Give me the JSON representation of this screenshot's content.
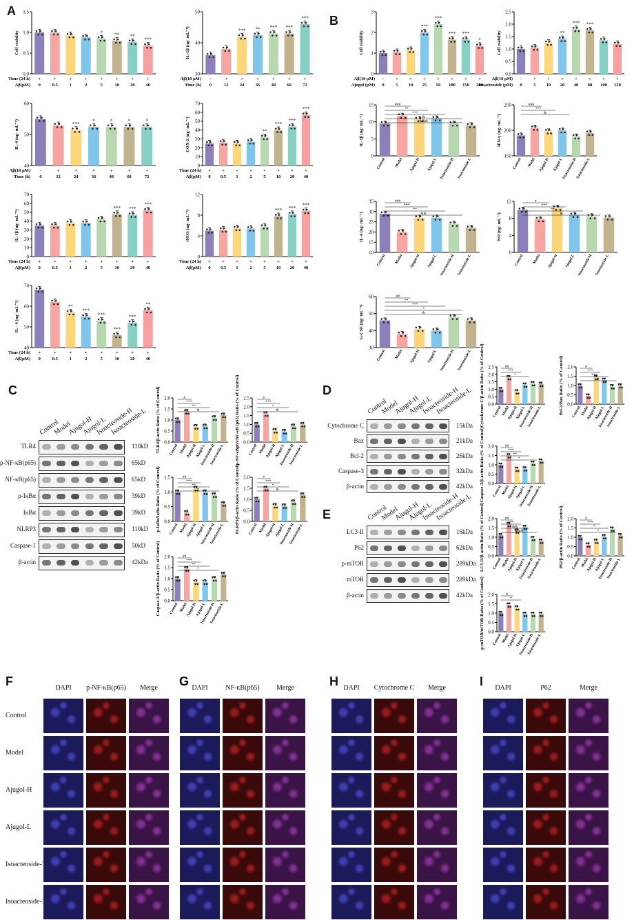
{
  "panels": {
    "A": "A",
    "B": "B",
    "C": "C",
    "D": "D",
    "E": "E",
    "F": "F",
    "G": "G",
    "H": "H",
    "I": "I"
  },
  "colors": [
    "#8c7fba",
    "#f6a5a0",
    "#fdd67a",
    "#7fc6ea",
    "#b8d9b0",
    "#c2b38f",
    "#86d1c4",
    "#f7a0a0",
    "#8f9ad0",
    "#b38fb6"
  ],
  "chart_data": [
    {
      "id": "a1",
      "type": "bar",
      "ylabel": "Cell viability",
      "ylim": [
        0,
        1.5
      ],
      "yticks": [
        "0.0",
        "0.5",
        "1.0",
        "1.5"
      ],
      "rowlabels": [
        "Time (24 h)",
        "Aβ(μM)"
      ],
      "rows": [
        [
          "+",
          "+",
          "+",
          "+",
          "+",
          "+",
          "+",
          "+"
        ],
        [
          "0",
          "0.5",
          "1",
          "2",
          "5",
          "10",
          "20",
          "40"
        ]
      ],
      "values": [
        1.0,
        1.0,
        0.93,
        0.88,
        0.85,
        0.8,
        0.77,
        0.68
      ],
      "sig": [
        "",
        "",
        "",
        "",
        "*",
        "**",
        "**",
        "***"
      ]
    },
    {
      "id": "a2",
      "type": "bar",
      "ylabel": "IL-1β (ng· mL⁻¹)",
      "ylim": [
        30,
        50
      ],
      "yticks": [
        "30",
        "40",
        "50"
      ],
      "rowlabels": [
        "Aβ(10 μM)",
        "Time (h)"
      ],
      "rows": [
        [
          "-",
          "+",
          "+",
          "+",
          "+",
          "+",
          "+"
        ],
        [
          "0",
          "12",
          "24",
          "36",
          "48",
          "60",
          "72"
        ]
      ],
      "values": [
        36,
        38,
        42,
        42.5,
        43,
        43,
        46
      ],
      "sig": [
        "",
        "",
        "***",
        "**",
        "***",
        "***",
        "***"
      ]
    },
    {
      "id": "a3",
      "type": "bar",
      "ylabel": "IL-4 (ng· mL⁻¹)",
      "ylim": [
        40,
        60
      ],
      "yticks": [
        "40",
        "50",
        "60"
      ],
      "rowlabels": [
        "Aβ(10 μM)",
        "Time (h)"
      ],
      "rows": [
        [
          "-",
          "+",
          "+",
          "+",
          "+",
          "+",
          "+"
        ],
        [
          "0",
          "12",
          "24",
          "36",
          "48",
          "60",
          "72"
        ]
      ],
      "values": [
        55,
        53,
        51.5,
        52.5,
        52.5,
        52.5,
        52.5
      ],
      "sig": [
        "",
        "",
        "***",
        "*",
        "*",
        "*",
        "*"
      ]
    },
    {
      "id": "a4",
      "type": "bar",
      "ylabel": "COX-2 (ng· mL⁻¹)",
      "ylim": [
        0,
        70
      ],
      "yticks": [
        "0",
        "10",
        "20",
        "30",
        "40",
        "50",
        "60",
        "70"
      ],
      "rowlabels": [
        "Time (24 h)",
        "Aβ(μM)"
      ],
      "rows": [
        [
          "+",
          "+",
          "+",
          "+",
          "+",
          "+",
          "+",
          "+"
        ],
        [
          "0",
          "0.5",
          "1",
          "2",
          "5",
          "10",
          "20",
          "40"
        ]
      ],
      "values": [
        25,
        26,
        25,
        27,
        32,
        40,
        44,
        57
      ],
      "sig": [
        "",
        "",
        "",
        "",
        "**",
        "***",
        "***",
        "***"
      ]
    },
    {
      "id": "a5",
      "type": "bar",
      "ylabel": "IL-1β (ng· mL⁻¹)",
      "ylim": [
        0,
        70
      ],
      "yticks": [
        "0",
        "10",
        "20",
        "30",
        "40",
        "50",
        "60",
        "70"
      ],
      "rowlabels": [
        "Time (24 h)",
        "Aβ(μM)"
      ],
      "rows": [
        [
          "+",
          "+",
          "+",
          "+",
          "+",
          "+",
          "+",
          "+"
        ],
        [
          "0",
          "0.5",
          "1",
          "2",
          "5",
          "10",
          "20",
          "40"
        ]
      ],
      "values": [
        35,
        35,
        38,
        38,
        42,
        48,
        47,
        52
      ],
      "sig": [
        "",
        "",
        "",
        "",
        "",
        "***",
        "***",
        "***"
      ]
    },
    {
      "id": "a6",
      "type": "bar",
      "ylabel": "iNOS (ng· mL⁻¹)",
      "ylim": [
        0,
        12
      ],
      "yticks": [
        "0",
        "4",
        "8",
        "12"
      ],
      "rowlabels": [
        "Time (24 h)",
        "Aβ(μM)"
      ],
      "rows": [
        [
          "+",
          "+",
          "+",
          "+",
          "+",
          "+",
          "+",
          "+"
        ],
        [
          "0",
          "0.5",
          "1",
          "2",
          "5",
          "10",
          "20",
          "40"
        ]
      ],
      "values": [
        5,
        5.2,
        5.5,
        5.4,
        5.8,
        7.8,
        8.2,
        8.8
      ],
      "sig": [
        "",
        "",
        "",
        "",
        "",
        "***",
        "***",
        "***"
      ]
    },
    {
      "id": "a7",
      "type": "bar",
      "ylabel": "IL - 4 (ng· mL⁻¹)",
      "ylim": [
        40,
        70
      ],
      "yticks": [
        "40",
        "50",
        "60",
        "70"
      ],
      "rowlabels": [
        "Time (24 h)",
        "Aβ(μM)"
      ],
      "rows": [
        [
          "+",
          "+",
          "+",
          "+",
          "+",
          "+",
          "+",
          "+"
        ],
        [
          "0",
          "0.5",
          "1",
          "2",
          "5",
          "10",
          "20",
          "40"
        ]
      ],
      "values": [
        68,
        62,
        57,
        55,
        53,
        46,
        52,
        58
      ],
      "sig": [
        "",
        "",
        "**",
        "***",
        "***",
        "***",
        "***",
        "**"
      ]
    },
    {
      "id": "b1",
      "type": "bar",
      "ylabel": "Cell viability",
      "ylim": [
        0,
        3
      ],
      "yticks": [
        "0",
        "1",
        "2",
        "3"
      ],
      "rowlabels": [
        "Aβ(10 μM)",
        "Ajugol (μM)"
      ],
      "rows": [
        [
          "-",
          "+",
          "+",
          "+",
          "+",
          "+",
          "+",
          "+"
        ],
        [
          "0",
          "5",
          "10",
          "25",
          "50",
          "100",
          "150",
          "200"
        ]
      ],
      "values": [
        1.0,
        1.05,
        1.15,
        2.0,
        2.4,
        1.65,
        1.65,
        1.35
      ],
      "sig": [
        "",
        "",
        "",
        "***",
        "***",
        "***",
        "***",
        "*"
      ]
    },
    {
      "id": "b2",
      "type": "bar",
      "ylabel": "Cell viability",
      "ylim": [
        0,
        2.5
      ],
      "yticks": [
        "0.0",
        "0.5",
        "1.0",
        "1.5",
        "2.0",
        "2.5"
      ],
      "rowlabels": [
        "Aβ(10 μM)",
        "Isoacteoside (μM)"
      ],
      "rows": [
        [
          "-",
          "+",
          "+",
          "+",
          "+",
          "+",
          "+",
          "+"
        ],
        [
          "0",
          "5",
          "10",
          "20",
          "40",
          "80",
          "100",
          "150"
        ]
      ],
      "values": [
        1.0,
        1.05,
        1.25,
        1.4,
        1.8,
        1.75,
        1.35,
        1.2
      ],
      "sig": [
        "",
        "",
        "",
        "**",
        "***",
        "***",
        "",
        ""
      ]
    },
    {
      "id": "b3",
      "type": "bar",
      "ylabel": "IL-1β (ng· mL⁻¹)",
      "ylim": [
        0,
        15
      ],
      "yticks": [
        "0",
        "5",
        "10",
        "15"
      ],
      "groups": [
        "Control",
        "Model",
        "Ajugol-H",
        "Ajugol-L",
        "Isoacteoside-H",
        "Isoacteoside-L"
      ],
      "values": [
        9.5,
        11.8,
        10.8,
        11,
        9.5,
        9
      ],
      "sig": [
        "###",
        "**",
        "***",
        "&",
        "&&&"
      ]
    },
    {
      "id": "b4",
      "type": "bar",
      "ylabel": "IFN-γ (ng· mL⁻¹)",
      "ylim": [
        150,
        250
      ],
      "yticks": [
        "150",
        "200",
        "250"
      ],
      "groups": [
        "Control",
        "Model",
        "Ajugol-H",
        "Ajugol-L",
        "Isoacteoside-H",
        "Isoacteoside-L"
      ],
      "values": [
        190,
        205,
        198,
        200,
        188,
        195
      ],
      "sig": [
        "###",
        "***",
        "&"
      ]
    },
    {
      "id": "b5",
      "type": "bar",
      "ylabel": "IL-4 (ng· mL⁻¹)",
      "ylim": [
        10,
        35
      ],
      "yticks": [
        "10",
        "15",
        "20",
        "25",
        "30",
        "35"
      ],
      "groups": [
        "Control",
        "Model",
        "Ajugol-H",
        "Ajugol-L",
        "Isoacteoside-H",
        "Isoacteoside-L"
      ],
      "values": [
        29,
        20,
        27,
        27,
        24,
        22
      ],
      "sig": [
        "###",
        "***",
        "**",
        "&&"
      ]
    },
    {
      "id": "b6",
      "type": "bar",
      "ylabel": "NO (ng· mL⁻¹)",
      "ylim": [
        0,
        12
      ],
      "yticks": [
        "0",
        "4",
        "8",
        "12"
      ],
      "groups": [
        "Control",
        "Model",
        "Ajugol-H",
        "Ajugol-L",
        "Isoacteoside-H",
        "Isoacteoside-L"
      ],
      "values": [
        10,
        7.8,
        10.5,
        8.8,
        8.5,
        8.2
      ],
      "sig": [
        "#",
        "***",
        "**",
        "&"
      ]
    },
    {
      "id": "b7",
      "type": "bar",
      "ylabel": "G-CSF (ng· mL⁻¹)",
      "ylim": [
        30,
        60
      ],
      "yticks": [
        "30",
        "40",
        "50",
        "60"
      ],
      "groups": [
        "Control",
        "Model",
        "Ajugol-H",
        "Ajugol-L",
        "Isoacteoside-H",
        "Isoacteoside-L"
      ],
      "values": [
        46,
        38,
        41,
        40,
        48,
        46
      ],
      "sig": [
        "##",
        "**",
        "***",
        "*",
        "&"
      ]
    },
    {
      "id": "c1",
      "type": "bar",
      "ylabel": "TLR4/β-actin Ratio (% of Control)",
      "ylim": [
        0,
        2
      ],
      "yticks": [
        "0.0",
        "0.5",
        "1.0",
        "1.5",
        "2.0"
      ],
      "groups": [
        "Control",
        "Model",
        "Ajugol-H",
        "Ajugol-L",
        "Isoacteoside-H",
        "Isoacteoside-L"
      ],
      "values": [
        1.0,
        1.38,
        0.7,
        0.72,
        1.1,
        1.22
      ],
      "sig": [
        "#",
        "***",
        "**",
        "&"
      ]
    },
    {
      "id": "c2",
      "type": "bar",
      "ylabel": "p-NF-κBp65/NF-κB (p65) Ratio (% of Control)",
      "ylim": [
        0,
        2.5
      ],
      "yticks": [
        "0.0",
        "0.5",
        "1.0",
        "1.5",
        "2.0",
        "2.5"
      ],
      "groups": [
        "Control",
        "Model",
        "Ajugol-H",
        "Ajugol-L",
        "Isoacteoside-H",
        "Isoacteoside-L"
      ],
      "values": [
        1.0,
        1.6,
        0.65,
        0.6,
        0.9,
        1.0
      ],
      "sig": [
        "#",
        "***",
        "*",
        "&"
      ]
    },
    {
      "id": "c3",
      "type": "bar",
      "ylabel": "p-IκBα/IκBα Ratio (% of Control)",
      "ylim": [
        0,
        1.5
      ],
      "yticks": [
        "0.0",
        "0.5",
        "1.0",
        "1.5"
      ],
      "groups": [
        "Control",
        "Model",
        "Ajugol-H",
        "Ajugol-L",
        "Isoacteoside-H",
        "Isoacteoside-L"
      ],
      "values": [
        1.0,
        0.3,
        1.12,
        1.0,
        0.9,
        0.6
      ],
      "sig": [
        "##",
        "***",
        "**",
        "*"
      ]
    },
    {
      "id": "c4",
      "type": "bar",
      "ylabel": "NLRP3/β-actin Ratio (% of Control)",
      "ylim": [
        0,
        2
      ],
      "yticks": [
        "0.0",
        "0.5",
        "1.0",
        "1.5",
        "2.0"
      ],
      "groups": [
        "Control",
        "Model",
        "Ajugol-H",
        "Ajugol-L",
        "Isoacteoside-H",
        "Isoacteoside-L"
      ],
      "values": [
        1.0,
        1.5,
        0.72,
        0.7,
        0.88,
        1.2
      ],
      "sig": [
        "#",
        "***",
        "*",
        "&"
      ]
    },
    {
      "id": "c5",
      "type": "bar",
      "ylabel": "Caspase-1/β-actin Ratio (% of Control)",
      "ylim": [
        0,
        2
      ],
      "yticks": [
        "0.0",
        "0.5",
        "1.0",
        "1.5",
        "2.0"
      ],
      "groups": [
        "Control",
        "Model",
        "Ajugol-H",
        "Ajugol-L",
        "Isoacteoside-H",
        "Isoacteoside-L"
      ],
      "values": [
        1.0,
        1.45,
        0.85,
        0.85,
        1.0,
        1.2
      ],
      "sig": [
        "##",
        "***",
        "**",
        "*"
      ]
    },
    {
      "id": "d1",
      "type": "bar",
      "ylabel": "Cytochrome C/β-actin Ratio (% of Control)",
      "ylim": [
        0,
        2.5
      ],
      "yticks": [
        "0.0",
        "0.5",
        "1.0",
        "1.5",
        "2.0",
        "2.5"
      ],
      "groups": [
        "Control",
        "Model",
        "Ajugol-H",
        "Ajugol-L",
        "Isoacteoside-H",
        "Isoacteoside-L"
      ],
      "values": [
        1.0,
        1.8,
        0.85,
        1.3,
        1.4,
        1.35
      ],
      "sig": [
        "##",
        "***",
        "*"
      ]
    },
    {
      "id": "d2",
      "type": "bar",
      "ylabel": "Bcl-2/Bax Ratio (% of Control)",
      "ylim": [
        0,
        2
      ],
      "yticks": [
        "0.0",
        "0.5",
        "1.0",
        "1.5",
        "2.0"
      ],
      "groups": [
        "Control",
        "Model",
        "Ajugol-H",
        "Ajugol-L",
        "Isoacteoside-H",
        "Isoacteoside-L"
      ],
      "values": [
        1.0,
        0.45,
        1.45,
        1.3,
        0.95,
        1.0
      ],
      "sig": [
        "#",
        "***",
        "***",
        "*"
      ]
    },
    {
      "id": "d3",
      "type": "bar",
      "ylabel": "Caspase-3/β-actin Ratio (% of Control)",
      "ylim": [
        0,
        2
      ],
      "yticks": [
        "0.0",
        "0.5",
        "1.0",
        "1.5",
        "2.0"
      ],
      "groups": [
        "Control",
        "Model",
        "Ajugol-H",
        "Ajugol-L",
        "Isoacteoside-H",
        "Isoacteoside-L"
      ],
      "values": [
        1.0,
        1.5,
        0.78,
        0.8,
        1.1,
        1.22
      ],
      "sig": [
        "##",
        "***",
        "**",
        "*"
      ]
    },
    {
      "id": "e1",
      "type": "bar",
      "ylabel": "LC3-II/β-actin Ratio (% of Control)",
      "ylim": [
        0,
        2
      ],
      "yticks": [
        "0.0",
        "0.5",
        "1.0",
        "1.5",
        "2.0"
      ],
      "groups": [
        "Control",
        "Model",
        "Ajugol-H",
        "Ajugol-L",
        "Isoacteoside-H",
        "Isoacteoside-L"
      ],
      "values": [
        1.1,
        1.7,
        1.35,
        1.55,
        0.95,
        0.8
      ],
      "sig": [
        "##",
        "***",
        "&&",
        "&&&"
      ]
    },
    {
      "id": "e2",
      "type": "bar",
      "ylabel": "P62/β-actin Ratio (% of Control)",
      "ylim": [
        0,
        2
      ],
      "yticks": [
        "0.0",
        "0.5",
        "1.0",
        "1.5",
        "2.0"
      ],
      "groups": [
        "Control",
        "Model",
        "Ajugol-H",
        "Ajugol-L",
        "Isoacteoside-H",
        "Isoacteoside-L"
      ],
      "values": [
        1.0,
        0.6,
        0.8,
        1.05,
        1.45,
        1.1
      ],
      "sig": [
        "#",
        "***",
        "*",
        "*"
      ]
    },
    {
      "id": "e3",
      "type": "bar",
      "ylabel": "p-mTOR/mTOR Ratio (% of Control)",
      "ylim": [
        0,
        2
      ],
      "yticks": [
        "0.0",
        "0.5",
        "1.0",
        "1.5",
        "2.0"
      ],
      "groups": [
        "Control",
        "Model",
        "Ajugol-H",
        "Ajugol-L",
        "Isoacteoside-H",
        "Isoacteoside-L"
      ],
      "values": [
        1.0,
        1.45,
        1.3,
        0.95,
        0.95,
        0.95
      ],
      "sig": [
        "#",
        "*"
      ]
    }
  ],
  "westernC": {
    "lanes": [
      "Control",
      "Model",
      "Ajugol-H",
      "Ajugol-L",
      "Isoacteoside-H",
      "Isoacteoside-L"
    ],
    "rows": [
      {
        "name": "TLR4",
        "size": "110kD"
      },
      {
        "name": "p-NF-κB(p65)",
        "size": "65kD"
      },
      {
        "name": "NF-κB(p65)",
        "size": "65kD"
      },
      {
        "name": "p-IκBα",
        "size": "39kD"
      },
      {
        "name": "IκBα",
        "size": "39kD"
      },
      {
        "name": "NLRP3",
        "size": "110kD"
      },
      {
        "name": "Caspase-1",
        "size": "50kD"
      },
      {
        "name": "β-actin",
        "size": "42kDa"
      }
    ]
  },
  "westernD": {
    "lanes": [
      "Control",
      "Model",
      "Ajugol-H",
      "Ajugol-L",
      "Isoacteoside-H",
      "Isoacteoside-L"
    ],
    "rows": [
      {
        "name": "Cytochrome C",
        "size": "15kDa"
      },
      {
        "name": "Bax",
        "size": "21kDa"
      },
      {
        "name": "Bcl-2",
        "size": "26kDa"
      },
      {
        "name": "Caspase-3",
        "size": "32kDa"
      },
      {
        "name": "β-actin",
        "size": "42kDa"
      }
    ]
  },
  "westernE": {
    "lanes": [
      "Control",
      "Model",
      "Ajugol-H",
      "Ajugol-L",
      "Isoacteoside-H",
      "Isoacteoside-L"
    ],
    "rows": [
      {
        "name": "LC3-II",
        "size": "16kDa"
      },
      {
        "name": "P62",
        "size": "62kDa"
      },
      {
        "name": "p-mTOR",
        "size": "289kDa"
      },
      {
        "name": "mTOR",
        "size": "289kDa"
      },
      {
        "name": "β-actin",
        "size": "42kDa"
      }
    ]
  },
  "ifRows": [
    "Control",
    "Model",
    "Ajugol-H",
    "Ajugol-L",
    "Isoacteoside-H",
    "Isoacteoside-L"
  ],
  "ifPanels": [
    {
      "cols": [
        "DAPI",
        "p-NF-κB(p65)",
        "Merge"
      ]
    },
    {
      "cols": [
        "DAPI",
        "NF-κB(p65)",
        "Merge"
      ]
    },
    {
      "cols": [
        "DAPI",
        "Cytochrome C",
        "Merge"
      ]
    },
    {
      "cols": [
        "DAPI",
        "P62",
        "Merge"
      ]
    }
  ]
}
